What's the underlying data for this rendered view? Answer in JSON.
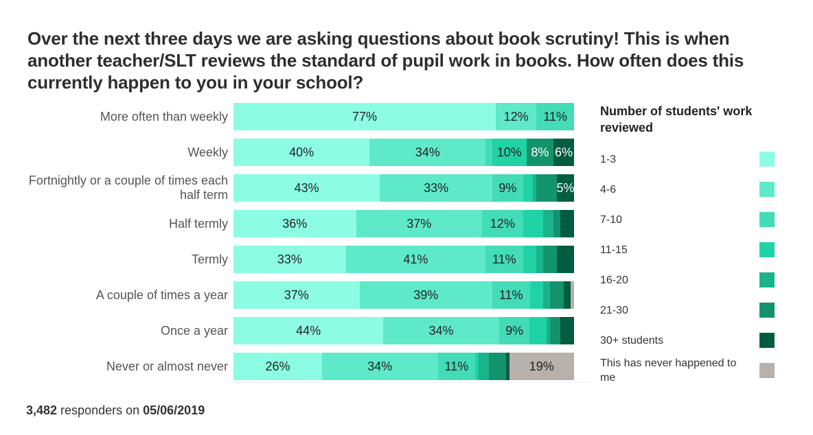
{
  "chart_data": {
    "type": "bar",
    "orientation": "horizontal",
    "stacked": true,
    "title": "Over the next three days we are asking questions about book scrutiny! This is when another teacher/SLT reviews the standard of pupil work in books. How often does this currently happen to you in your school?",
    "xlabel": "",
    "ylabel": "",
    "xlim": [
      0,
      100
    ],
    "grid": false,
    "legend_title": "Number of students' work reviewed",
    "legend_position": "right",
    "categories": [
      "More often than weekly",
      "Weekly",
      "Fortnightly or a couple of times each half term",
      "Half termly",
      "Termly",
      "A couple of times a year",
      "Once a year",
      "Never or almost never"
    ],
    "series": [
      {
        "name": "1-3",
        "color": "#8cfde3",
        "values": [
          77,
          40,
          43,
          36,
          33,
          37,
          44,
          26
        ],
        "labels": [
          "77%",
          "40%",
          "43%",
          "36%",
          "33%",
          "37%",
          "44%",
          "26%"
        ]
      },
      {
        "name": "4-6",
        "color": "#5ee9c9",
        "values": [
          12,
          34,
          33,
          37,
          41,
          39,
          34,
          34
        ],
        "labels": [
          "12%",
          "34%",
          "33%",
          "37%",
          "41%",
          "39%",
          "34%",
          "34%"
        ]
      },
      {
        "name": "7-10",
        "color": "#43dcb7",
        "values": [
          11,
          2,
          9,
          12,
          11,
          11,
          9,
          11
        ],
        "labels": [
          "11%",
          "",
          "9%",
          "12%",
          "11%",
          "11%",
          "9%",
          "11%"
        ]
      },
      {
        "name": "11-15",
        "color": "#1fd3a7",
        "values": [
          0,
          10,
          3,
          6,
          4,
          4,
          5,
          1
        ],
        "labels": [
          "",
          "10%",
          "",
          "",
          "",
          "",
          "",
          ""
        ]
      },
      {
        "name": "16-20",
        "color": "#1ab38b",
        "values": [
          0,
          0,
          1,
          3,
          2,
          2,
          1,
          3
        ],
        "labels": [
          "",
          "",
          "",
          "",
          "",
          "",
          "",
          ""
        ]
      },
      {
        "name": "21-30",
        "color": "#13936c",
        "values": [
          0,
          8,
          6,
          2,
          4,
          4,
          3,
          5
        ],
        "labels": [
          "",
          "8%",
          "",
          "",
          "",
          "",
          "",
          ""
        ]
      },
      {
        "name": "30+ students",
        "color": "#025d40",
        "values": [
          0,
          6,
          5,
          4,
          5,
          2,
          4,
          1
        ],
        "labels": [
          "",
          "6%",
          "5%",
          "",
          "",
          "",
          "",
          ""
        ]
      },
      {
        "name": "This has never happened to me",
        "color": "#b8b0ab",
        "values": [
          0,
          0,
          0,
          0,
          0,
          1,
          0,
          19
        ],
        "labels": [
          "",
          "",
          "",
          "",
          "",
          "",
          "",
          "19%"
        ]
      }
    ]
  },
  "footer": {
    "count": "3,482",
    "middle": " responders on ",
    "date": "05/06/2019"
  }
}
